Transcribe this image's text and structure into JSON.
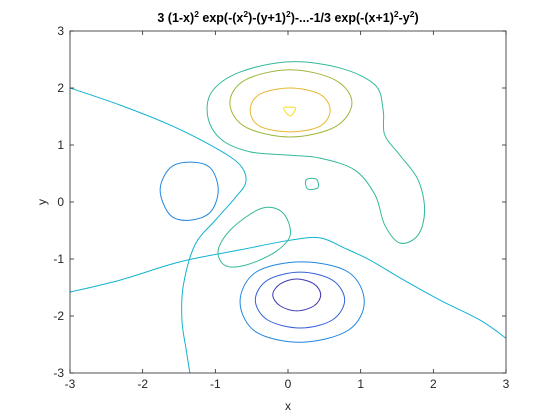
{
  "chart_data": {
    "type": "contour",
    "title": [
      "3  (1-x)",
      "2",
      "  exp(-(x",
      "2",
      ")-(y+1)",
      "2",
      ")-...-1/3  exp(-(x+1)",
      "2",
      "-y",
      "2",
      ")"
    ],
    "xlabel": "x",
    "ylabel": "y",
    "xlim": [
      -3,
      3
    ],
    "ylim": [
      -3,
      3
    ],
    "xticks": [
      -3,
      -2,
      -1,
      0,
      1,
      2,
      3
    ],
    "yticks": [
      -3,
      -2,
      -1,
      0,
      1,
      2,
      3
    ],
    "series": [
      {
        "color": "#3e3bb0",
        "lines": [
          {
            "closed": true,
            "x": [
              0.12,
              0.36,
              0.45,
              0.36,
              0.12,
              -0.11,
              -0.21,
              -0.11
            ],
            "y": [
              -1.35,
              -1.44,
              -1.63,
              -1.82,
              -1.91,
              -1.82,
              -1.63,
              -1.44
            ]
          }
        ]
      },
      {
        "color": "#3560d8",
        "lines": [
          {
            "closed": true,
            "x": [
              0.17,
              0.61,
              0.78,
              0.61,
              0.17,
              -0.28,
              -0.45,
              -0.28
            ],
            "y": [
              -1.23,
              -1.37,
              -1.72,
              -2.07,
              -2.21,
              -2.07,
              -1.72,
              -1.37
            ]
          }
        ]
      },
      {
        "color": "#2186e0",
        "lines": [
          {
            "closed": true,
            "x": [
              0.19,
              0.83,
              1.05,
              0.83,
              0.19,
              -0.44,
              -0.66,
              -0.44
            ],
            "y": [
              -1.05,
              -1.23,
              -1.75,
              -2.25,
              -2.46,
              -2.28,
              -1.75,
              -1.23
            ]
          },
          {
            "closed": true,
            "x": [
              -1.35,
              -1.07,
              -0.96,
              -1.07,
              -1.35,
              -1.62,
              -1.76,
              -1.62
            ],
            "y": [
              0.7,
              0.6,
              0.21,
              -0.18,
              -0.32,
              -0.23,
              0.21,
              0.6
            ]
          }
        ]
      },
      {
        "color": "#12b2d0",
        "lines": [
          {
            "closed": false,
            "x": [
              -3.0,
              -2.31,
              -1.62,
              -1.0,
              -0.66,
              -0.58,
              -0.73,
              -1.0,
              -1.28,
              -1.44,
              -1.46,
              -1.4,
              -1.35
            ],
            "y": [
              2.0,
              1.7,
              1.35,
              0.95,
              0.65,
              0.35,
              0.07,
              -0.32,
              -0.75,
              -1.46,
              -2.07,
              -2.6,
              -3.0
            ]
          },
          {
            "closed": false,
            "x": [
              -3.0,
              -2.31,
              -1.49,
              -0.66,
              0.03,
              0.44,
              0.78,
              1.13,
              1.54,
              2.09,
              2.64,
              3.0
            ],
            "y": [
              -1.58,
              -1.37,
              -1.05,
              -0.84,
              -0.67,
              -0.63,
              -0.81,
              -1.02,
              -1.33,
              -1.72,
              -2.07,
              -2.39
            ]
          }
        ]
      },
      {
        "color": "#33b99a",
        "lines": [
          {
            "closed": true,
            "x": [
              0.03,
              0.72,
              1.2,
              1.31,
              1.33,
              1.54,
              1.79,
              1.88,
              1.79,
              1.54,
              1.33,
              1.2,
              0.92,
              0.44,
              0.03,
              -0.52,
              -0.91,
              -1.1,
              -1.05,
              -0.66
            ],
            "y": [
              2.46,
              2.35,
              2.05,
              1.61,
              1.18,
              0.82,
              0.39,
              -0.14,
              -0.58,
              -0.72,
              -0.4,
              0.12,
              0.56,
              0.77,
              0.82,
              0.88,
              1.09,
              1.47,
              1.93,
              2.28
            ]
          },
          {
            "closed": true,
            "x": [
              -0.87,
              -0.96,
              -0.77,
              -0.36,
              -0.07,
              0.03,
              -0.18,
              -0.59
            ],
            "y": [
              -1.11,
              -0.84,
              -0.46,
              -0.11,
              -0.19,
              -0.58,
              -0.88,
              -1.11
            ]
          },
          {
            "closed": true,
            "x": [
              0.25,
              0.39,
              0.41,
              0.27
            ],
            "y": [
              0.39,
              0.4,
              0.25,
              0.23
            ]
          }
        ]
      },
      {
        "color": "#9cb83c",
        "lines": [
          {
            "closed": true,
            "x": [
              0.03,
              0.65,
              0.88,
              0.65,
              0.03,
              -0.59,
              -0.8,
              -0.59
            ],
            "y": [
              2.32,
              2.14,
              1.74,
              1.32,
              1.14,
              1.32,
              1.74,
              2.14
            ]
          }
        ]
      },
      {
        "color": "#e6b730",
        "lines": [
          {
            "closed": true,
            "x": [
              0.03,
              0.44,
              0.58,
              0.44,
              0.03,
              -0.39,
              -0.52,
              -0.39
            ],
            "y": [
              2.0,
              1.89,
              1.61,
              1.33,
              1.23,
              1.33,
              1.61,
              1.89
            ]
          }
        ]
      },
      {
        "color": "#f4e01c",
        "lines": [
          {
            "closed": true,
            "x": [
              -0.06,
              0.1,
              0.03
            ],
            "y": [
              1.65,
              1.65,
              1.51
            ]
          }
        ]
      }
    ]
  }
}
